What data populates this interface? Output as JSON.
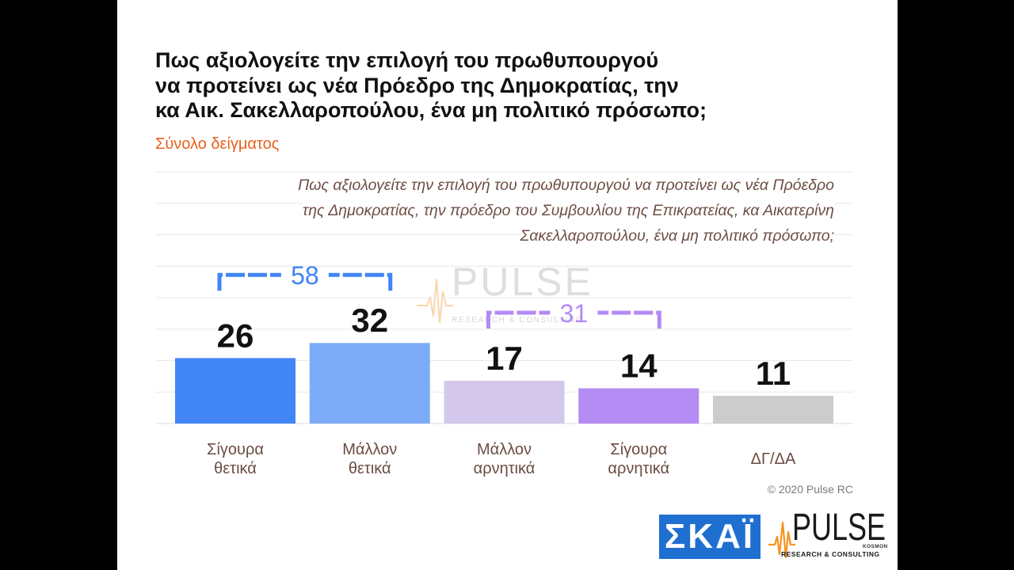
{
  "theme": {
    "page_background": "#000000",
    "slide_background": "#ffffff",
    "title_color": "#111111",
    "subtitle_color": "#e8601c",
    "note_color": "#6e4e44",
    "category_label_color": "#6b4c42",
    "grid_color": "#e8e8e8",
    "axis_color": "#dcdcdc",
    "data_label_color": "#111111",
    "copyright_color": "#7b7b7b",
    "skai_blue": "#1f6fd0",
    "pulse_orange": "#f7941d"
  },
  "watermark": {
    "icon": "pulse-waveform-icon",
    "brand": "PULSE",
    "tagline": "RESEARCH & CONSULTING"
  },
  "chart_data": {
    "type": "bar",
    "title": "Πως αξιολογείτε την επιλογή του πρωθυπουργού\nνα προτείνει ως νέα Πρόεδρο της Δημοκρατίας, την\nκα Αικ. Σακελλαροπούλου, ένα μη πολιτικό πρόσωπο;",
    "subtitle": "Σύνολο δείγματος",
    "question_note": "Πως αξιολογείτε την επιλογή του πρωθυπουργού να προτείνει ως νέα Πρόεδρο\nτης Δημοκρατίας, την πρόεδρο του Συμβουλίου της Επικρατείας, κα Αικατερίνη\nΣακελλαροπούλου, ένα μη πολιτικό πρόσωπο;",
    "categories": [
      "Σίγουρα θετικά",
      "Μάλλον θετικά",
      "Μάλλον αρνητικά",
      "Σίγουρα αρνητικά",
      "ΔΓ/ΔΑ"
    ],
    "values": [
      26,
      32,
      17,
      14,
      11
    ],
    "bar_colors": [
      "#4285f4",
      "#7cacf8",
      "#d3c8eb",
      "#b48bf2",
      "#cccccc"
    ],
    "ylim": [
      0,
      100
    ],
    "grid": true,
    "group_totals": [
      {
        "span": [
          0,
          1
        ],
        "value": 58,
        "color": "#3f84f4"
      },
      {
        "span": [
          2,
          3
        ],
        "value": 31,
        "color": "#b28af5"
      }
    ]
  },
  "footer": {
    "copyright": "© 2020 Pulse RC",
    "skai_logo": {
      "icon": "skai-logo",
      "text": "ΣΚΑΪ"
    },
    "pulse_logo": {
      "icon": "pulse-waveform-icon",
      "brand": "PULSE",
      "badge": "KOSMON",
      "tagline": "RESEARCH & CONSULTING"
    }
  }
}
